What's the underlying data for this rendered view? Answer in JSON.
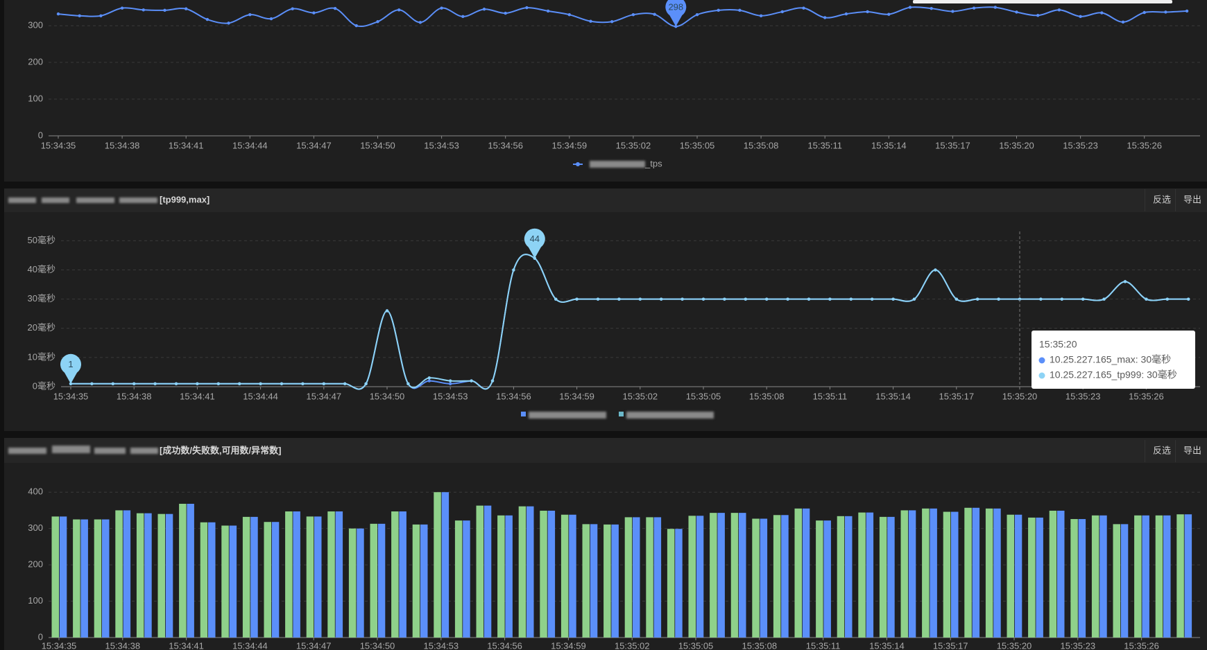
{
  "chart_data": [
    {
      "type": "line",
      "categories": [
        "15:34:35",
        null,
        null,
        "15:34:38",
        null,
        null,
        "15:34:41",
        null,
        null,
        "15:34:44",
        null,
        null,
        "15:34:47",
        null,
        null,
        "15:34:50",
        null,
        null,
        "15:34:53",
        null,
        null,
        "15:34:56",
        null,
        null,
        "15:34:59",
        null,
        null,
        "15:35:02",
        null,
        null,
        "15:35:05",
        null,
        null,
        "15:35:08",
        null,
        null,
        "15:35:11",
        null,
        null,
        "15:35:14",
        null,
        null,
        "15:35:17",
        null,
        null,
        "15:35:20",
        null,
        null,
        "15:35:23",
        null,
        null,
        "15:35:26",
        null,
        null
      ],
      "series": [
        {
          "name": "_tps",
          "color": "#5b8ff9",
          "pin": "min",
          "values": [
            332,
            327,
            327,
            348,
            343,
            342,
            346,
            317,
            307,
            330,
            319,
            346,
            335,
            347,
            300,
            311,
            343,
            309,
            348,
            325,
            345,
            334,
            349,
            340,
            330,
            312,
            311,
            330,
            331,
            298,
            330,
            342,
            342,
            327,
            338,
            348,
            322,
            332,
            338,
            331,
            350,
            347,
            339,
            348,
            350,
            337,
            328,
            343,
            325,
            335,
            310,
            336,
            337,
            340
          ]
        }
      ],
      "ylim": [
        0,
        370
      ],
      "yticks": [
        0,
        100,
        200,
        300
      ],
      "grid": true
    },
    {
      "type": "line",
      "title": "[tp999,max]",
      "toolbar": [
        "反选",
        "导出"
      ],
      "categories": [
        "15:34:35",
        null,
        null,
        "15:34:38",
        null,
        null,
        "15:34:41",
        null,
        null,
        "15:34:44",
        null,
        null,
        "15:34:47",
        null,
        null,
        "15:34:50",
        null,
        null,
        "15:34:53",
        null,
        null,
        "15:34:56",
        null,
        null,
        "15:34:59",
        null,
        null,
        "15:35:02",
        null,
        null,
        "15:35:05",
        null,
        null,
        "15:35:08",
        null,
        null,
        "15:35:11",
        null,
        null,
        "15:35:14",
        null,
        null,
        "15:35:17",
        null,
        null,
        "15:35:20",
        null,
        null,
        "15:35:23",
        null,
        null,
        "15:35:26",
        null,
        null
      ],
      "series": [
        {
          "color": "#5b8ff9",
          "values": [
            1,
            1,
            1,
            1,
            1,
            1,
            1,
            1,
            1,
            1,
            1,
            1,
            1,
            1,
            1,
            26,
            1,
            2,
            1,
            2,
            2,
            40,
            44,
            30,
            30,
            30,
            30,
            30,
            30,
            30,
            30,
            30,
            30,
            30,
            30,
            30,
            30,
            30,
            30,
            30,
            30,
            40,
            30,
            30,
            30,
            30,
            30,
            30,
            30,
            30,
            36,
            30,
            30,
            30
          ]
        },
        {
          "color": "#8dd3f5",
          "pin": "both",
          "values": [
            1,
            1,
            1,
            1,
            1,
            1,
            1,
            1,
            1,
            1,
            1,
            1,
            1,
            1,
            1,
            26,
            1,
            3,
            2,
            2,
            2,
            40,
            44,
            30,
            30,
            30,
            30,
            30,
            30,
            30,
            30,
            30,
            30,
            30,
            30,
            30,
            30,
            30,
            30,
            30,
            30,
            40,
            30,
            30,
            30,
            30,
            30,
            30,
            30,
            30,
            36,
            30,
            30,
            30
          ]
        }
      ],
      "ylim": [
        0,
        52
      ],
      "yticks": [
        {
          "value": 0,
          "label": "0毫秒"
        },
        {
          "value": 10,
          "label": "10毫秒"
        },
        {
          "value": 20,
          "label": "20毫秒"
        },
        {
          "value": 30,
          "label": "30毫秒"
        },
        {
          "value": 40,
          "label": "40毫秒"
        },
        {
          "value": 50,
          "label": "50毫秒"
        }
      ],
      "grid": true,
      "tooltip": {
        "title": "15:35:20",
        "items": [
          "10.25.227.165_max: 30毫秒",
          "10.25.227.165_tp999: 30毫秒"
        ]
      }
    },
    {
      "type": "bar",
      "title": "[成功数/失败数,可用数/异常数]",
      "toolbar": [
        "反选",
        "导出"
      ],
      "categories": [
        "15:34:35",
        null,
        null,
        "15:34:38",
        null,
        null,
        "15:34:41",
        null,
        null,
        "15:34:44",
        null,
        null,
        "15:34:47",
        null,
        null,
        "15:34:50",
        null,
        null,
        "15:34:53",
        null,
        null,
        "15:34:56",
        null,
        null,
        "15:34:59",
        null,
        null,
        "15:35:02",
        null,
        null,
        "15:35:05",
        null,
        null,
        "15:35:08",
        null,
        null,
        "15:35:11",
        null,
        null,
        "15:35:14",
        null,
        null,
        "15:35:17",
        null,
        null,
        "15:35:20",
        null,
        null,
        "15:35:23",
        null,
        null,
        "15:35:26",
        null,
        null
      ],
      "series": [
        {
          "color": "#8fd18a",
          "values": [
            333,
            325,
            325,
            350,
            342,
            340,
            368,
            317,
            308,
            332,
            318,
            347,
            333,
            347,
            300,
            313,
            347,
            311,
            400,
            322,
            363,
            336,
            361,
            349,
            338,
            312,
            311,
            331,
            331,
            299,
            335,
            343,
            343,
            327,
            337,
            355,
            322,
            334,
            344,
            332,
            350,
            355,
            346,
            357,
            355,
            338,
            330,
            349,
            326,
            336,
            312,
            336,
            336,
            339
          ]
        },
        {
          "color": "#5b8ff9",
          "values": [
            333,
            325,
            325,
            350,
            342,
            340,
            368,
            317,
            308,
            332,
            318,
            347,
            333,
            347,
            300,
            313,
            347,
            311,
            400,
            322,
            363,
            336,
            361,
            349,
            338,
            312,
            311,
            331,
            331,
            299,
            335,
            343,
            343,
            327,
            337,
            355,
            322,
            334,
            344,
            332,
            350,
            355,
            346,
            357,
            355,
            338,
            330,
            349,
            326,
            336,
            312,
            336,
            336,
            339
          ]
        }
      ],
      "ylim": [
        0,
        450
      ],
      "yticks": [
        0,
        100,
        200,
        300,
        400
      ],
      "grid": true
    }
  ]
}
